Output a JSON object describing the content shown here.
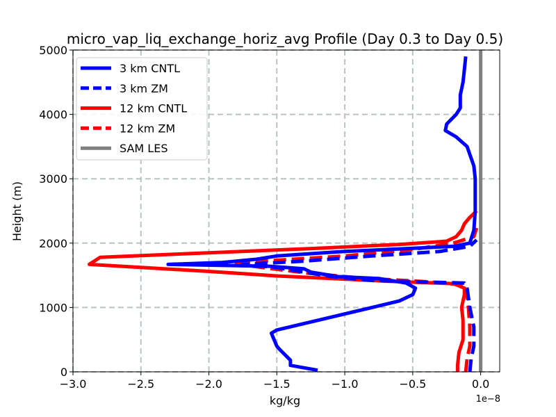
{
  "chart_data": {
    "type": "line",
    "title": "micro_vap_liq_exchange_horiz_avg Profile (Day 0.3 to Day 0.5)",
    "xlabel": "kg/kg",
    "ylabel": "Height (m)",
    "x_offset_label": "1e−8",
    "xlim": [
      -3.0,
      0.14
    ],
    "ylim": [
      0,
      5000
    ],
    "xticks": [
      -3.0,
      -2.5,
      -2.0,
      -1.5,
      -1.0,
      -0.5,
      0.0
    ],
    "xtick_labels": [
      "−3.0",
      "−2.5",
      "−2.0",
      "−1.5",
      "−1.0",
      "−0.5",
      "0.0"
    ],
    "yticks": [
      0,
      1000,
      2000,
      3000,
      4000,
      5000
    ],
    "ytick_labels": [
      "0",
      "1000",
      "2000",
      "3000",
      "4000",
      "5000"
    ],
    "grid": true,
    "legend_position": "top-left",
    "series": [
      {
        "name": "3 km CNTL",
        "color": "#0000ff",
        "style": "solid",
        "points": [
          [
            -1.2,
            25
          ],
          [
            -1.4,
            100
          ],
          [
            -1.4,
            180
          ],
          [
            -1.48,
            350
          ],
          [
            -1.5,
            400
          ],
          [
            -1.53,
            550
          ],
          [
            -1.54,
            600
          ],
          [
            -1.5,
            650
          ],
          [
            -1.4,
            700
          ],
          [
            -1.2,
            800
          ],
          [
            -1.0,
            900
          ],
          [
            -0.8,
            1000
          ],
          [
            -0.6,
            1100
          ],
          [
            -0.5,
            1200
          ],
          [
            -0.48,
            1300
          ],
          [
            -0.55,
            1380
          ],
          [
            -0.75,
            1450
          ],
          [
            -1.05,
            1480
          ],
          [
            -1.25,
            1550
          ],
          [
            -1.3,
            1600
          ],
          [
            -1.55,
            1640
          ],
          [
            -2.3,
            1670
          ],
          [
            -1.9,
            1700
          ],
          [
            -1.65,
            1750
          ],
          [
            -1.5,
            1800
          ],
          [
            -1.0,
            1870
          ],
          [
            -0.5,
            1920
          ],
          [
            -0.2,
            1950
          ],
          [
            -0.08,
            2000
          ],
          [
            -0.05,
            2200
          ],
          [
            -0.04,
            2500
          ],
          [
            -0.04,
            3000
          ],
          [
            -0.05,
            3200
          ],
          [
            -0.1,
            3500
          ],
          [
            -0.18,
            3650
          ],
          [
            -0.26,
            3750
          ],
          [
            -0.25,
            3850
          ],
          [
            -0.18,
            4000
          ],
          [
            -0.15,
            4100
          ],
          [
            -0.15,
            4300
          ],
          [
            -0.13,
            4500
          ],
          [
            -0.12,
            4700
          ],
          [
            -0.11,
            4900
          ]
        ]
      },
      {
        "name": "3 km ZM",
        "color": "#0000ff",
        "style": "dashed",
        "points": [
          [
            -0.08,
            0
          ],
          [
            -0.07,
            200
          ],
          [
            -0.05,
            400
          ],
          [
            -0.05,
            700
          ],
          [
            -0.08,
            1000
          ],
          [
            -0.1,
            1300
          ],
          [
            -0.12,
            1380
          ],
          [
            -0.5,
            1400
          ],
          [
            -0.8,
            1420
          ],
          [
            -1.1,
            1480
          ],
          [
            -1.3,
            1550
          ],
          [
            -1.5,
            1620
          ],
          [
            -1.75,
            1670
          ],
          [
            -1.3,
            1720
          ],
          [
            -0.8,
            1800
          ],
          [
            -0.3,
            1870
          ],
          [
            -0.08,
            1950
          ],
          [
            -0.03,
            2050
          ]
        ]
      },
      {
        "name": "12 km CNTL",
        "color": "#ff0000",
        "style": "solid",
        "points": [
          [
            -0.17,
            0
          ],
          [
            -0.17,
            100
          ],
          [
            -0.16,
            300
          ],
          [
            -0.13,
            500
          ],
          [
            -0.13,
            800
          ],
          [
            -0.14,
            1000
          ],
          [
            -0.12,
            1200
          ],
          [
            -0.12,
            1300
          ],
          [
            -0.2,
            1370
          ],
          [
            -0.6,
            1400
          ],
          [
            -1.5,
            1490
          ],
          [
            -2.0,
            1560
          ],
          [
            -2.88,
            1670
          ],
          [
            -2.8,
            1780
          ],
          [
            -2.0,
            1850
          ],
          [
            -1.2,
            1920
          ],
          [
            -0.6,
            1980
          ],
          [
            -0.25,
            2030
          ],
          [
            -0.18,
            2100
          ],
          [
            -0.14,
            2200
          ],
          [
            -0.12,
            2300
          ],
          [
            -0.08,
            2400
          ],
          [
            -0.03,
            2500
          ]
        ]
      },
      {
        "name": "12 km ZM",
        "color": "#ff0000",
        "style": "dashed",
        "points": [
          [
            -0.11,
            0
          ],
          [
            -0.1,
            200
          ],
          [
            -0.08,
            400
          ],
          [
            -0.08,
            700
          ],
          [
            -0.09,
            1000
          ],
          [
            -0.1,
            1200
          ],
          [
            -0.11,
            1350
          ],
          [
            -0.4,
            1400
          ],
          [
            -0.9,
            1460
          ],
          [
            -1.3,
            1540
          ],
          [
            -1.6,
            1620
          ],
          [
            -1.82,
            1680
          ],
          [
            -1.6,
            1720
          ],
          [
            -1.0,
            1800
          ],
          [
            -0.5,
            1900
          ],
          [
            -0.2,
            2000
          ],
          [
            -0.05,
            2100
          ],
          [
            -0.02,
            2300
          ]
        ]
      },
      {
        "name": "SAM LES",
        "color": "#808080",
        "style": "solid",
        "points": [
          [
            0.0,
            0
          ],
          [
            0.0,
            5000
          ]
        ]
      }
    ]
  }
}
